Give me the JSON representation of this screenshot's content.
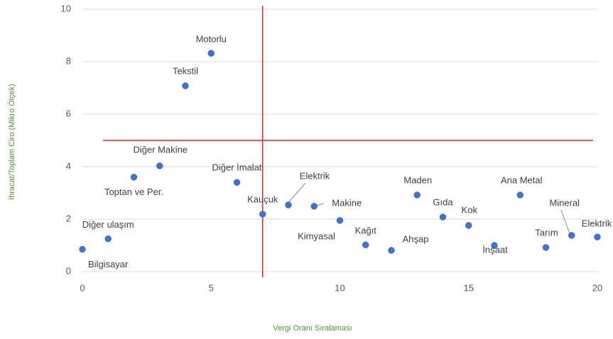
{
  "chart_data": {
    "type": "scatter",
    "x_label": "Vergi Oranı Sıralaması",
    "y_label": "İhracat/Toplam Ciro (Mikro Ölçek)",
    "xlim": [
      0,
      20
    ],
    "xticks": [
      0,
      5,
      10,
      15,
      20
    ],
    "ylim": [
      0,
      10
    ],
    "yticks": [
      0,
      2,
      4,
      6,
      8,
      10
    ],
    "grid": true,
    "color": "#4472c4",
    "points": [
      {
        "label": "Bilgisayar",
        "x": 0,
        "y": 0.85
      },
      {
        "label": "Diğer ulaşım",
        "x": 1,
        "y": 1.25
      },
      {
        "label": "Toptan ve Per.",
        "x": 2,
        "y": 3.6
      },
      {
        "label": "Diğer Makine",
        "x": 3,
        "y": 4.03
      },
      {
        "label": "Tekstil",
        "x": 4,
        "y": 7.08
      },
      {
        "label": "Motorlu",
        "x": 5,
        "y": 8.32
      },
      {
        "label": "Diğer İmalat",
        "x": 6,
        "y": 3.4
      },
      {
        "label": "Kauçuk",
        "x": 7,
        "y": 2.19
      },
      {
        "label": "Elektrik",
        "x": 8,
        "y": 2.54
      },
      {
        "label": "Makine",
        "x": 9,
        "y": 2.49
      },
      {
        "label": "Kimyasal",
        "x": 10,
        "y": 1.95
      },
      {
        "label": "Kağıt",
        "x": 11,
        "y": 1.02
      },
      {
        "label": "Ahşap",
        "x": 12,
        "y": 0.81
      },
      {
        "label": "Maden",
        "x": 13,
        "y": 2.92
      },
      {
        "label": "Gıda",
        "x": 14,
        "y": 2.08
      },
      {
        "label": "Kok",
        "x": 15,
        "y": 1.76
      },
      {
        "label": "İnşaat",
        "x": 16,
        "y": 1.0
      },
      {
        "label": "Ana Metal",
        "x": 17,
        "y": 2.92
      },
      {
        "label": "Tarım",
        "x": 18,
        "y": 0.92
      },
      {
        "label": "Mineral",
        "x": 19,
        "y": 1.38
      },
      {
        "label": "Elektrik",
        "x": 20,
        "y": 1.32
      }
    ],
    "reference_lines": {
      "color": "#e0262b",
      "vline_x": 7,
      "hline_y": 5,
      "hline_from_x": 0.8
    }
  }
}
